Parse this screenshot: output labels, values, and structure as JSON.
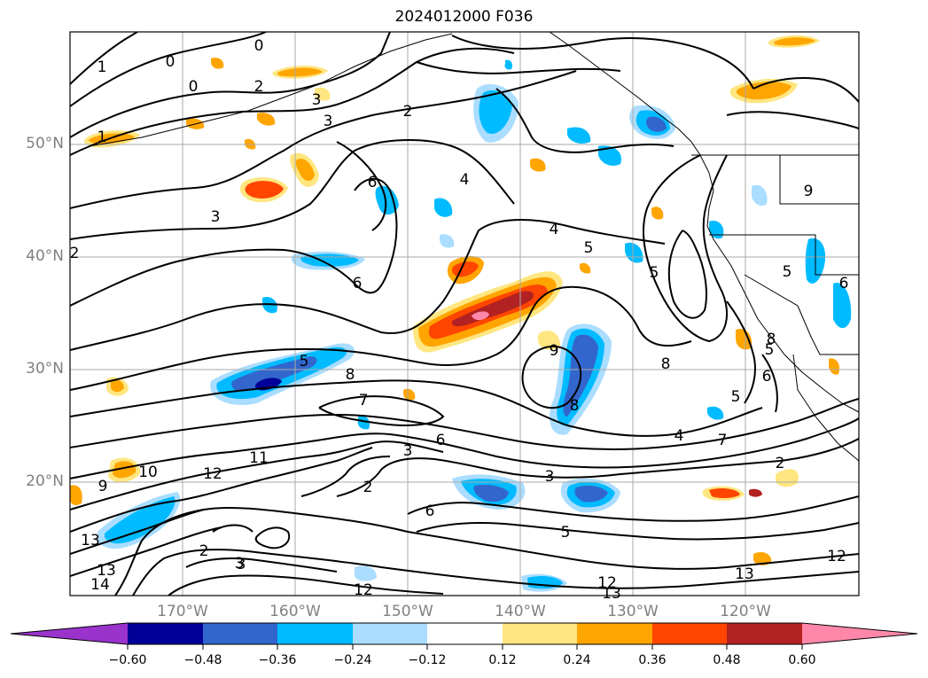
{
  "title": "2024012000 F036",
  "latitude_labels": [
    "50°N",
    "40°N",
    "30°N",
    "20°N"
  ],
  "longitude_labels": [
    "170°W",
    "160°W",
    "150°W",
    "140°W",
    "130°W",
    "120°W"
  ],
  "colorbar": {
    "ticks": [
      "−0.60",
      "−0.48",
      "−0.36",
      "−0.24",
      "−0.12",
      "0.12",
      "0.24",
      "0.36",
      "0.48",
      "0.60"
    ],
    "colors": [
      "#9933cc",
      "#000099",
      "#3366cc",
      "#00bbff",
      "#aaddff",
      "#ffffff",
      "#ffe680",
      "#ffa500",
      "#ff4500",
      "#b22222",
      "#ff88aa"
    ]
  },
  "contour_labels": [
    "0",
    "0",
    "0",
    "1",
    "1",
    "2",
    "2",
    "3",
    "3",
    "3",
    "2",
    "6",
    "4",
    "4",
    "5",
    "6",
    "5",
    "8",
    "8",
    "7",
    "9",
    "8",
    "6",
    "3",
    "3",
    "2",
    "6",
    "4",
    "7",
    "2",
    "3",
    "12",
    "11",
    "10",
    "9",
    "13",
    "13",
    "14",
    "2",
    "3",
    "12",
    "13",
    "12",
    "13",
    "12",
    "5",
    "5",
    "5",
    "5",
    "6",
    "5",
    "9",
    "8",
    "6"
  ]
}
